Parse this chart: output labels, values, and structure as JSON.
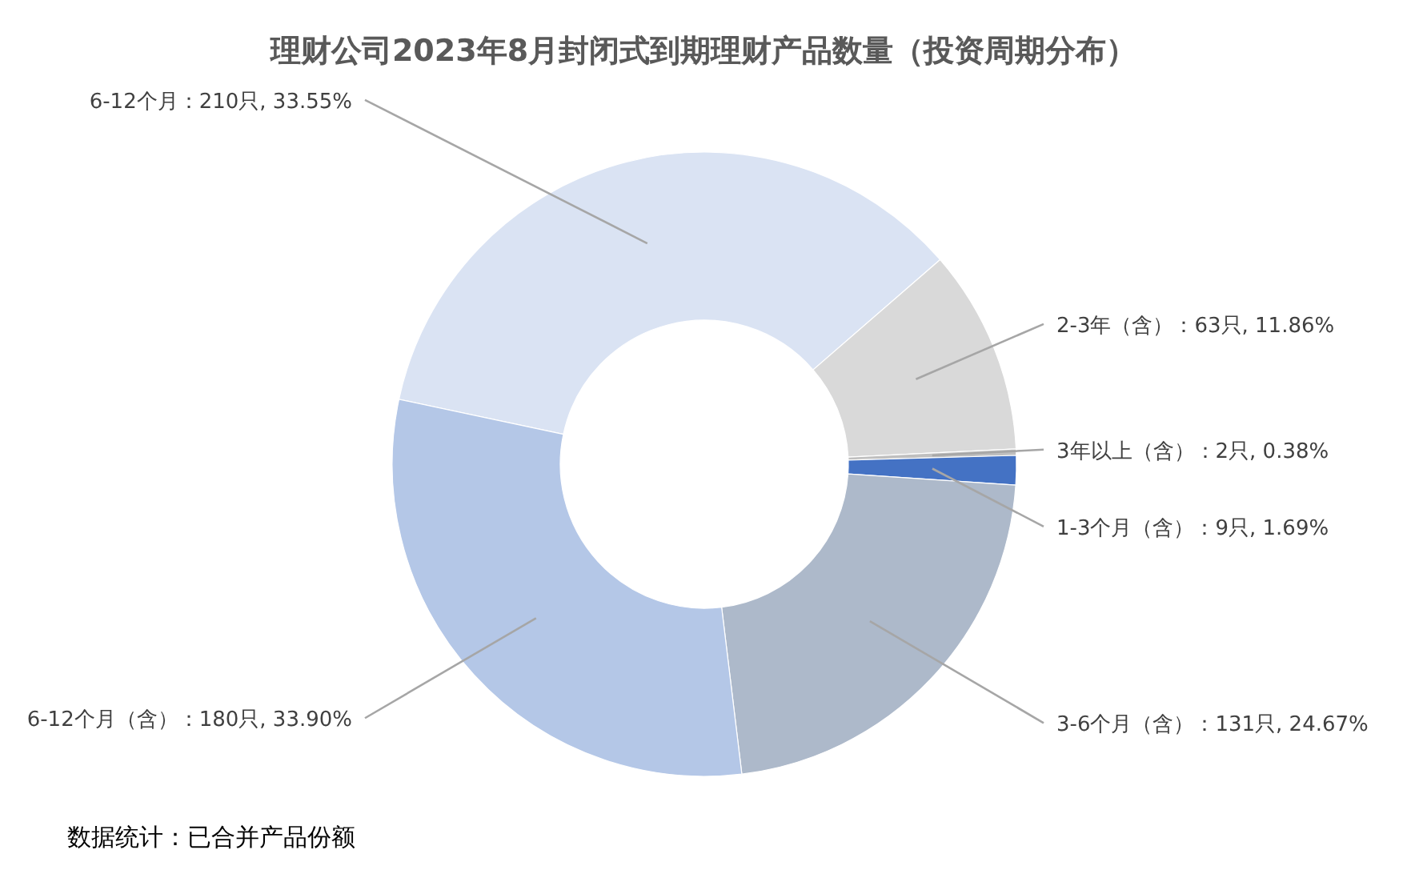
{
  "chart_data": {
    "type": "donut",
    "title": "理财公司2023年8月封闭式到期理财产品数量（投资周期分布）",
    "categories": [
      "6-12个月",
      "2-3年（含）",
      "3年以上（含）",
      "1-3个月（含）",
      "3-6个月（含）",
      "6-12个月（含）"
    ],
    "legend": false,
    "values": [
      210,
      63,
      2,
      9,
      131,
      180
    ],
    "colors": [
      "#dae3f3",
      "#d9d9d9",
      "#bfbfbf",
      "#4472c4",
      "#adb9ca",
      "#b4c7e7"
    ],
    "value_labels": [
      "210只, 33.55%",
      "63只, 11.86%",
      "2只, 0.38%",
      "9只, 1.69%",
      "131只, 24.67%",
      "180只, 33.90%"
    ],
    "annotations": [
      "数据统计：已合并产品份额"
    ]
  }
}
